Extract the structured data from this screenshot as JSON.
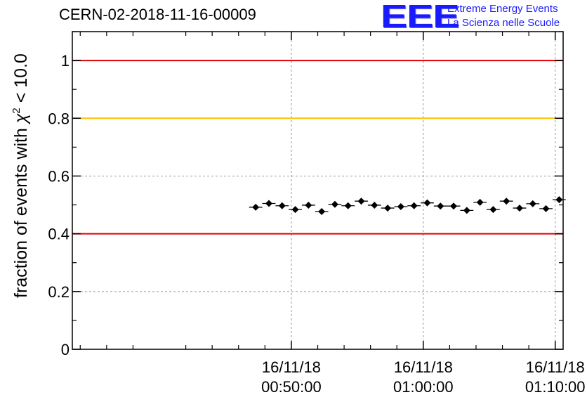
{
  "header": {
    "run_title": "CERN-02-2018-11-16-00009",
    "logo_mark": "EEE",
    "logo_line1": "Extreme Energy Events",
    "logo_line2": "La Scienza nelle Scuole",
    "logo_color": "#1a1aff"
  },
  "chart_data": {
    "type": "scatter",
    "ylabel_prefix": "fraction of events with ",
    "ylabel_chi": "χ",
    "ylabel_sup": "2",
    "ylabel_suffix": " < 10.0",
    "ylim": [
      0,
      1.1
    ],
    "yticks": [
      0,
      0.2,
      0.4,
      0.6,
      0.8,
      1
    ],
    "ytick_labels": [
      "0",
      "0.2",
      "0.4",
      "0.6",
      "0.8",
      "1"
    ],
    "xlim_minutes": [
      -16.6,
      20.6
    ],
    "xticks": [
      {
        "minute": 0,
        "date": "16/11/18",
        "time": "00:50:00"
      },
      {
        "minute": 10,
        "date": "16/11/18",
        "time": "01:00:00"
      },
      {
        "minute": 20,
        "date": "16/11/18",
        "time": "01:10:00"
      }
    ],
    "grid": true,
    "reference_lines": [
      {
        "y": 1.0,
        "color": "#e00000"
      },
      {
        "y": 0.8,
        "color": "#ffc000"
      },
      {
        "y": 0.4,
        "color": "#e00000"
      }
    ],
    "x_minutes": [
      -2.7,
      -1.7,
      -0.7,
      0.3,
      1.3,
      2.3,
      3.3,
      4.3,
      5.3,
      6.3,
      7.3,
      8.3,
      9.3,
      10.3,
      11.3,
      12.3,
      13.3,
      14.3,
      15.3,
      16.3,
      17.3,
      18.3,
      19.3,
      20.3
    ],
    "y": [
      0.492,
      0.505,
      0.497,
      0.484,
      0.499,
      0.477,
      0.502,
      0.497,
      0.513,
      0.499,
      0.489,
      0.494,
      0.497,
      0.507,
      0.496,
      0.496,
      0.481,
      0.509,
      0.484,
      0.513,
      0.489,
      0.504,
      0.487,
      0.518
    ],
    "x_halfwidth_minutes": 0.5,
    "y_err": 0.01
  }
}
